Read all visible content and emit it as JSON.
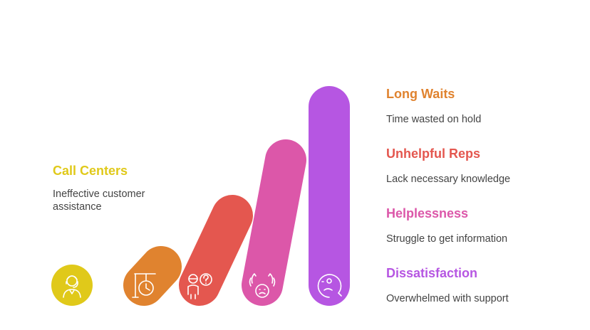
{
  "colors": {
    "yellow": "#e0c91a",
    "orange": "#e0832f",
    "red": "#e4574f",
    "pink": "#dc57a9",
    "purple": "#b656e2",
    "desc_text": "#444444"
  },
  "left": {
    "title": "Call Centers",
    "desc": "Ineffective customer assistance",
    "icon": "customer-service-agent-icon"
  },
  "items": [
    {
      "title": "Long Waits",
      "desc": "Time wasted on hold",
      "icon": "waiting-clock-icon"
    },
    {
      "title": "Unhelpful Reps",
      "desc": "Lack necessary knowledge",
      "icon": "confused-person-icon"
    },
    {
      "title": "Helplessness",
      "desc": "Struggle to get information",
      "icon": "frustrated-face-icon"
    },
    {
      "title": "Dissatisfaction",
      "desc": "Overwhelmed with support",
      "icon": "sad-face-icon"
    }
  ]
}
